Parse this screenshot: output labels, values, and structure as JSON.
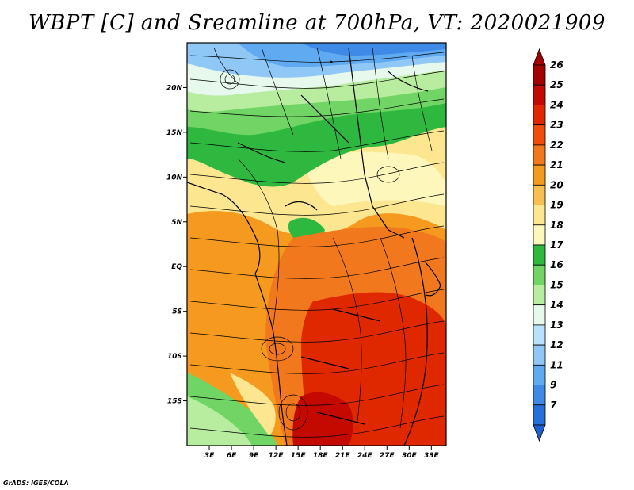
{
  "title": "WBPT [C] and Sreamline at 700hPa, VT: 2020021909",
  "credit": "GrADS: IGES/COLA",
  "map": {
    "lon_range": [
      0,
      35
    ],
    "lat_range": [
      -20,
      25
    ],
    "lat_ticks": [
      {
        "value": 20,
        "label": "20N"
      },
      {
        "value": 15,
        "label": "15N"
      },
      {
        "value": 10,
        "label": "10N"
      },
      {
        "value": 5,
        "label": "5N"
      },
      {
        "value": 0,
        "label": "EQ"
      },
      {
        "value": -5,
        "label": "5S"
      },
      {
        "value": -10,
        "label": "10S"
      },
      {
        "value": -15,
        "label": "15S"
      }
    ],
    "lon_ticks": [
      {
        "value": 3,
        "label": "3E"
      },
      {
        "value": 6,
        "label": "6E"
      },
      {
        "value": 9,
        "label": "9E"
      },
      {
        "value": 12,
        "label": "12E"
      },
      {
        "value": 15,
        "label": "15E"
      },
      {
        "value": 18,
        "label": "18E"
      },
      {
        "value": 21,
        "label": "21E"
      },
      {
        "value": 24,
        "label": "24E"
      },
      {
        "value": 27,
        "label": "27E"
      },
      {
        "value": 30,
        "label": "30E"
      },
      {
        "value": 33,
        "label": "33E"
      }
    ]
  },
  "colorbar": {
    "levels": [
      {
        "label": "26",
        "color": "#a50000"
      },
      {
        "label": "25",
        "color": "#c40a00"
      },
      {
        "label": "24",
        "color": "#e02800"
      },
      {
        "label": "23",
        "color": "#f04c0a"
      },
      {
        "label": "22",
        "color": "#f2781e"
      },
      {
        "label": "21",
        "color": "#f59a1e"
      },
      {
        "label": "20",
        "color": "#f7bf52"
      },
      {
        "label": "19",
        "color": "#fde690"
      },
      {
        "label": "18",
        "color": "#fdf7bc"
      },
      {
        "label": "17",
        "color": "#2fb83f"
      },
      {
        "label": "16",
        "color": "#70d565"
      },
      {
        "label": "15",
        "color": "#b8ec9f"
      },
      {
        "label": "14",
        "color": "#e6f9ec"
      },
      {
        "label": "13",
        "color": "#b6e3f9"
      },
      {
        "label": "12",
        "color": "#8fc8f6"
      },
      {
        "label": "11",
        "color": "#5faaf0"
      },
      {
        "label": "9",
        "color": "#3f8ae6"
      },
      {
        "label": "7",
        "color": "#276fdc"
      }
    ],
    "bottom_color": "#1f5fd0",
    "top_color": "#a50000"
  }
}
